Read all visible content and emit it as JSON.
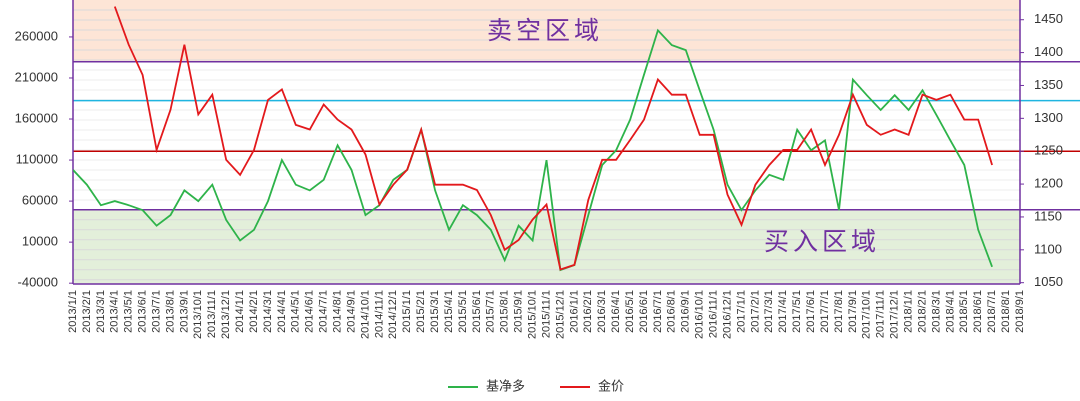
{
  "chart_data": {
    "type": "line",
    "categories": [
      "2013/1/1",
      "2013/2/1",
      "2013/3/1",
      "2013/4/1",
      "2013/5/1",
      "2013/6/1",
      "2013/7/1",
      "2013/8/1",
      "2013/9/1",
      "2013/10/1",
      "2013/11/1",
      "2013/12/1",
      "2014/1/1",
      "2014/2/1",
      "2014/3/1",
      "2014/4/1",
      "2014/5/1",
      "2014/6/1",
      "2014/7/1",
      "2014/8/1",
      "2014/9/1",
      "2014/10/1",
      "2014/11/1",
      "2014/12/1",
      "2015/1/1",
      "2015/2/1",
      "2015/3/1",
      "2015/4/1",
      "2015/5/1",
      "2015/6/1",
      "2015/7/1",
      "2015/8/1",
      "2015/9/1",
      "2015/10/1",
      "2015/11/1",
      "2015/12/1",
      "2016/1/1",
      "2016/2/1",
      "2016/3/1",
      "2016/4/1",
      "2016/5/1",
      "2016/6/1",
      "2016/7/1",
      "2016/8/1",
      "2016/9/1",
      "2016/10/1",
      "2016/11/1",
      "2016/12/1",
      "2017/1/1",
      "2017/2/1",
      "2017/3/1",
      "2017/4/1",
      "2017/5/1",
      "2017/6/1",
      "2017/7/1",
      "2017/8/1",
      "2017/9/1",
      "2017/10/1",
      "2017/11/1",
      "2017/12/1",
      "2018/1/1",
      "2018/2/1",
      "2018/3/1",
      "2018/4/1",
      "2018/5/1",
      "2018/6/1",
      "2018/7/1",
      "2018/8/1",
      "2018/9/1"
    ],
    "series": [
      {
        "name": "基净多",
        "color": "#2eb34a",
        "axis": "y",
        "values": [
          98000,
          80000,
          55000,
          60000,
          55000,
          49000,
          30000,
          43000,
          73000,
          60000,
          80000,
          37000,
          12000,
          25000,
          60000,
          110000,
          80000,
          73000,
          86000,
          128000,
          98000,
          43000,
          55000,
          86000,
          98000,
          147000,
          73000,
          25000,
          55000,
          43000,
          25000,
          -12000,
          30000,
          12000,
          110000,
          -24000,
          -18000,
          43000,
          104000,
          122000,
          159000,
          214000,
          268000,
          250000,
          244000,
          195000,
          147000,
          80000,
          49000,
          73000,
          92000,
          86000,
          147000,
          122000,
          134000,
          49000,
          208000,
          189000,
          171000,
          189000,
          171000,
          195000,
          165000,
          134000,
          104000,
          25000,
          -20000,
          null,
          null
        ]
      },
      {
        "name": "金价",
        "color": "#e3191c",
        "axis": "y2",
        "values": [
          null,
          null,
          null,
          1470,
          1412,
          1366,
          1252,
          1313,
          1412,
          1306,
          1336,
          1237,
          1214,
          1252,
          1328,
          1344,
          1290,
          1283,
          1321,
          1298,
          1283,
          1245,
          1169,
          1199,
          1222,
          1283,
          1199,
          1199,
          1199,
          1191,
          1153,
          1100,
          1115,
          1146,
          1169,
          1070,
          1077,
          1176,
          1237,
          1237,
          1267,
          1298,
          1359,
          1336,
          1336,
          1275,
          1275,
          1184,
          1138,
          1199,
          1229,
          1252,
          1252,
          1283,
          1229,
          1275,
          1336,
          1290,
          1275,
          1283,
          1275,
          1336,
          1328,
          1336,
          1298,
          1298,
          1229,
          null,
          null
        ]
      }
    ],
    "ylim": [
      -41000,
      305000
    ],
    "yticks": [
      -40000,
      10000,
      60000,
      110000,
      160000,
      210000,
      260000
    ],
    "y2lim": [
      1048,
      1480
    ],
    "y2ticks": [
      1050,
      1100,
      1150,
      1200,
      1250,
      1300,
      1350,
      1400,
      1450
    ],
    "zones": [
      {
        "from": 1386,
        "to": 1480,
        "color": "#fde5d6",
        "label": "卖空区域"
      },
      {
        "from": 1048,
        "to": 1161,
        "color": "#e3efda",
        "label": "买入区域"
      }
    ],
    "reference_lines": [
      {
        "value": 1386,
        "color": "#7030a0"
      },
      {
        "value": 1327,
        "color": "#1fb5e0"
      },
      {
        "value": 1250,
        "color": "#c00000"
      },
      {
        "value": 1161,
        "color": "#7030a0"
      }
    ],
    "legend": "bottom"
  }
}
